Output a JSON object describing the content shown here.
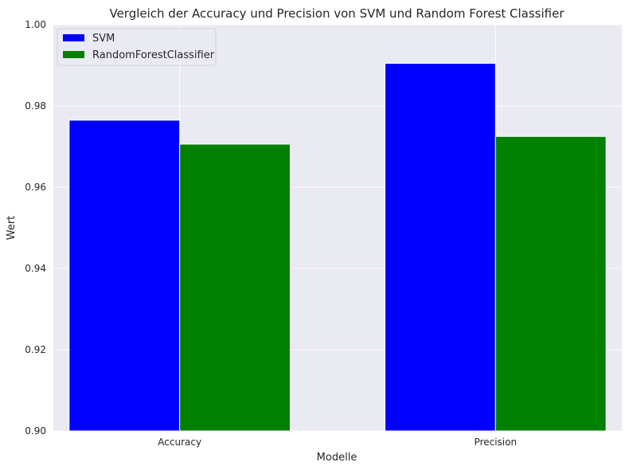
{
  "chart_data": {
    "type": "bar",
    "title": "Vergleich der Accuracy und Precision von SVM und Random Forest Classifier",
    "xlabel": "Modelle",
    "ylabel": "Wert",
    "categories": [
      "Accuracy",
      "Precision"
    ],
    "series": [
      {
        "name": "SVM",
        "values": [
          0.9765,
          0.9905
        ],
        "color": "#0000ff"
      },
      {
        "name": "RandomForestClassifier",
        "values": [
          0.9706,
          0.9725
        ],
        "color": "#008000"
      }
    ],
    "ylim": [
      0.9,
      1.0
    ],
    "yticks": [
      0.9,
      0.92,
      0.94,
      0.96,
      0.98,
      1.0
    ],
    "ytick_labels": [
      "0.90",
      "0.92",
      "0.94",
      "0.96",
      "0.98",
      "1.00"
    ],
    "grid": true,
    "legend_position": "upper left",
    "plot_background": "#eaeaf2",
    "grid_color": "#ffffff"
  }
}
